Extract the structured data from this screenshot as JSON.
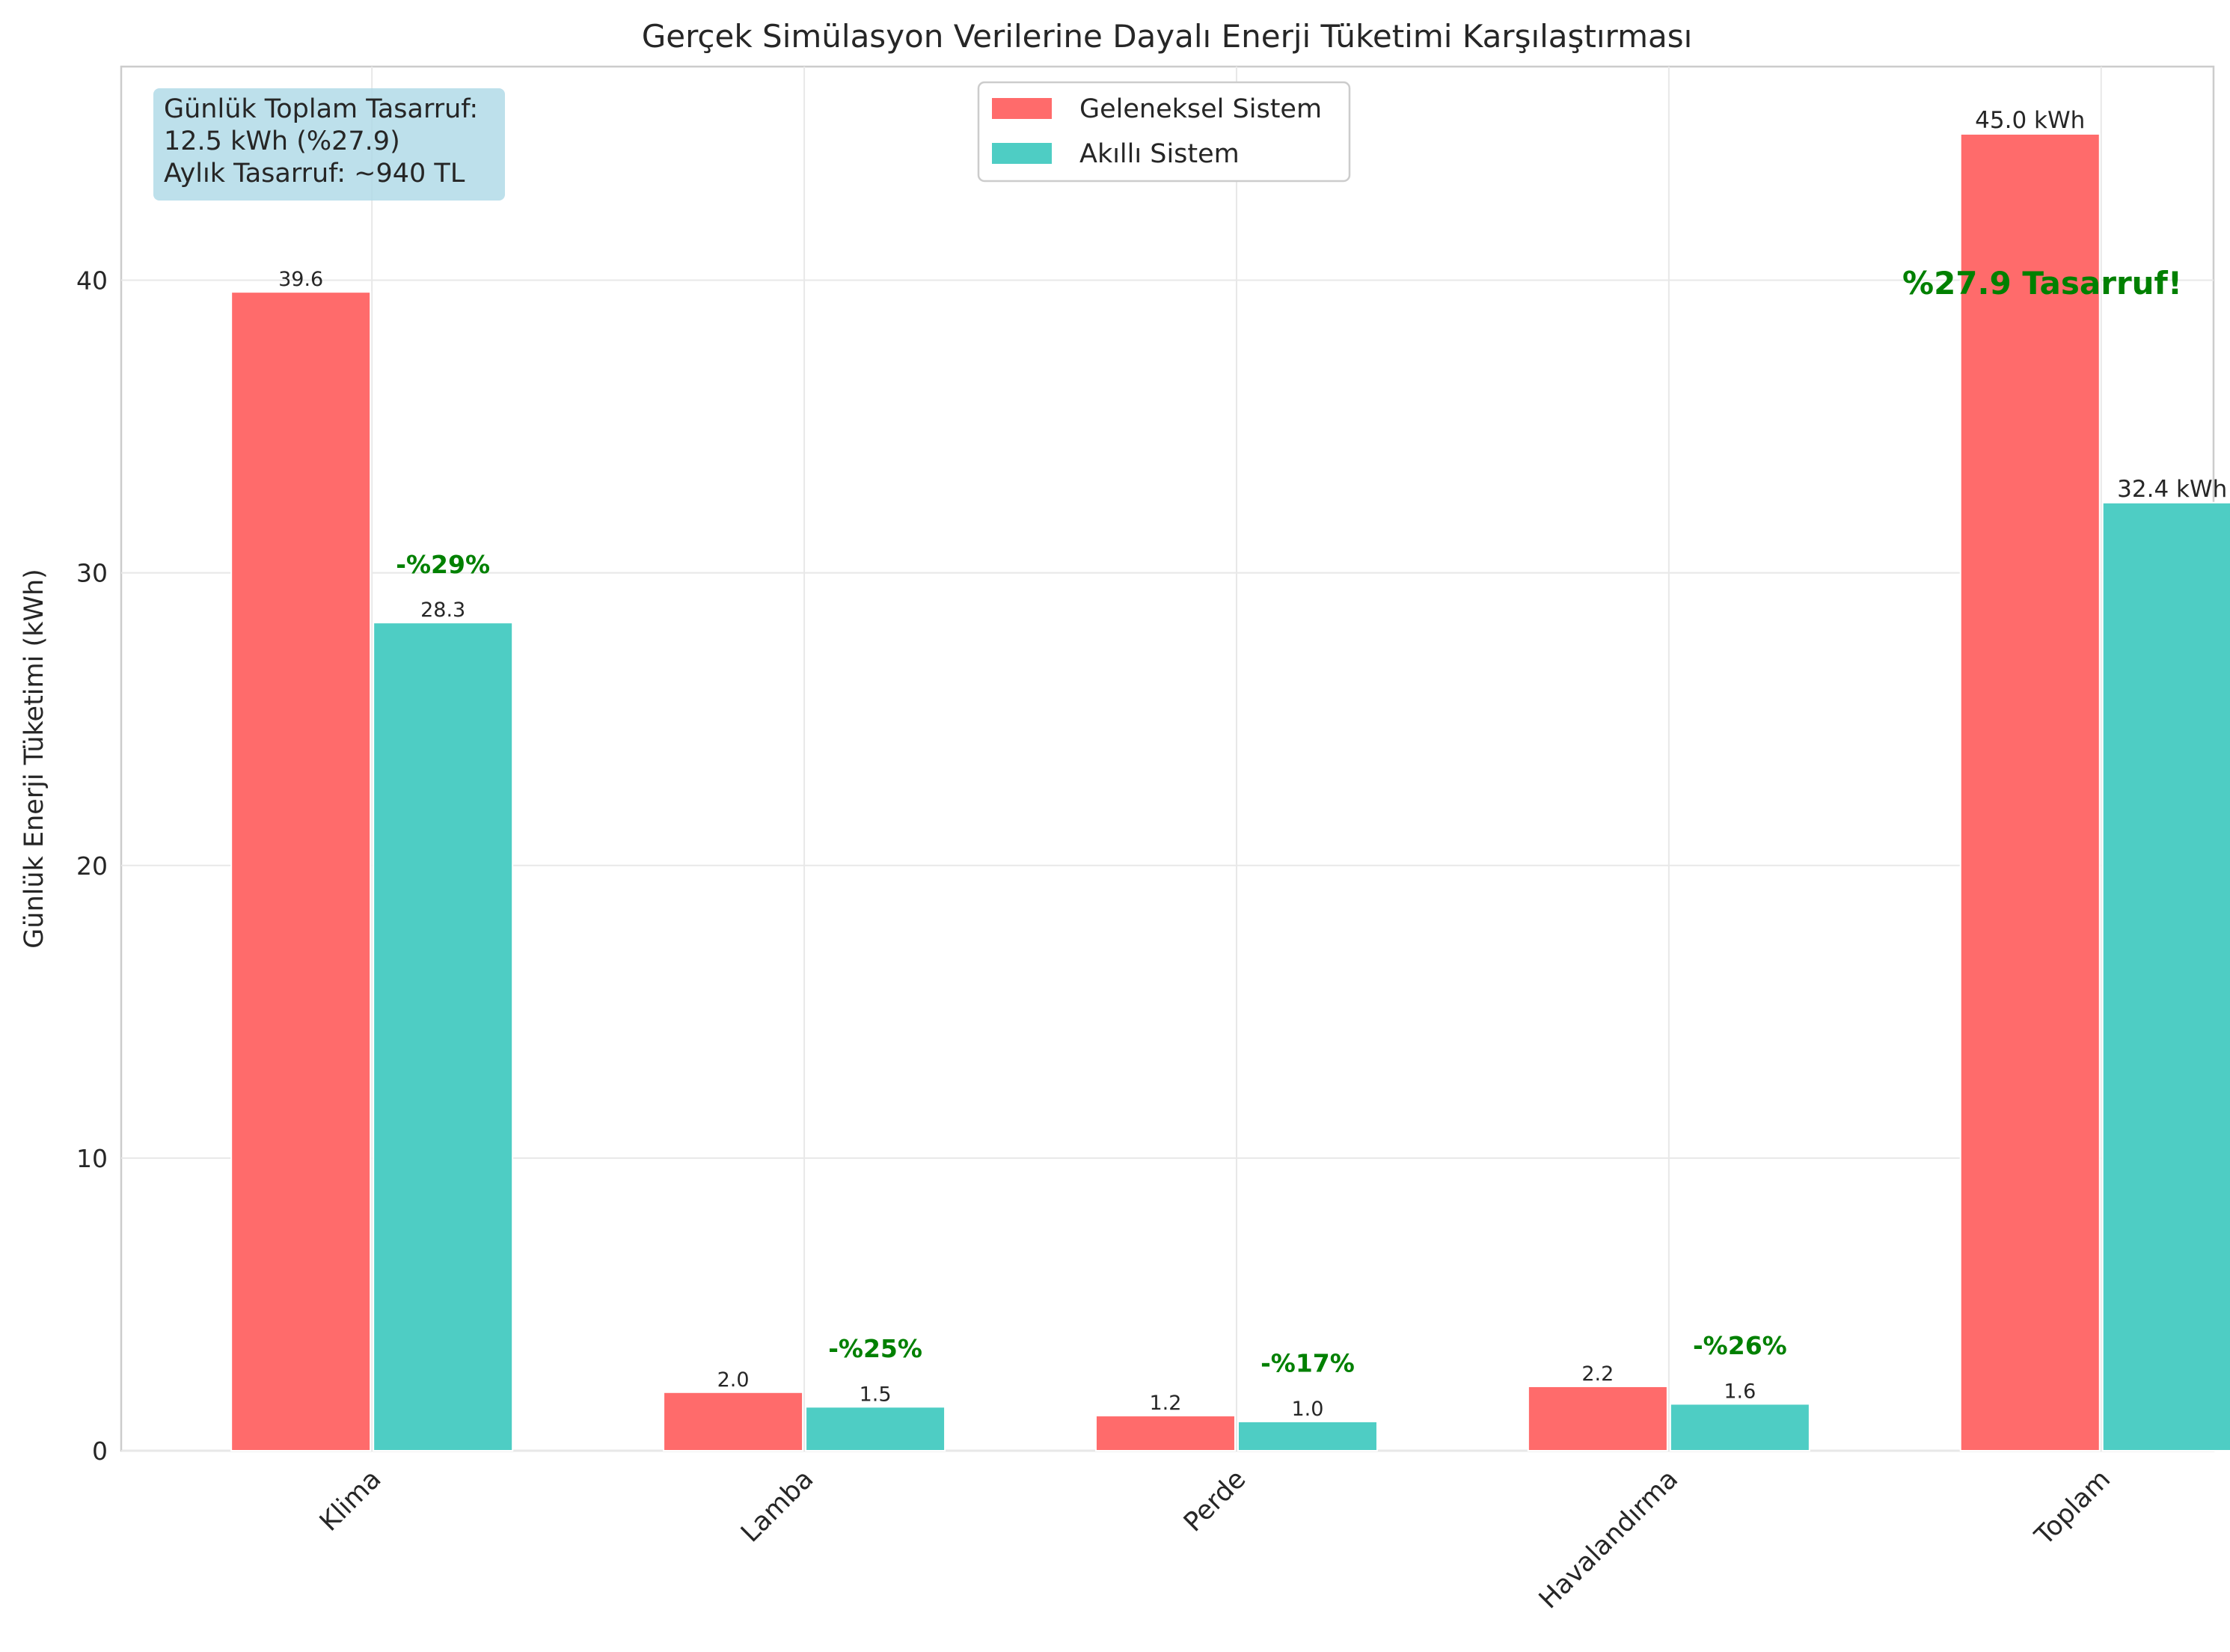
{
  "chart_data": {
    "type": "bar",
    "title": "Gerçek Simülasyon Verilerine Dayalı Enerji Tüketimi Karşılaştırması",
    "xlabel": "",
    "ylabel": "Günlük Enerji Tüketimi (kWh)",
    "ylim": [
      0,
      47.3
    ],
    "yticks": [
      0,
      10,
      20,
      30,
      40
    ],
    "grid": true,
    "legend_position": "top-center",
    "categories": [
      "Klima",
      "Lamba",
      "Perde",
      "Havalandırma",
      "Toplam"
    ],
    "series": [
      {
        "name": "Geleneksel Sistem",
        "color": "#ff6b6b",
        "values": [
          39.6,
          2.0,
          1.2,
          2.2,
          45.0
        ],
        "labels": [
          "39.6",
          "2.0",
          "1.2",
          "2.2",
          "45.0 kWh"
        ]
      },
      {
        "name": "Akıllı Sistem",
        "color": "#4ecdc4",
        "values": [
          28.3,
          1.5,
          1.0,
          1.6,
          32.4
        ],
        "labels": [
          "28.3",
          "1.5",
          "1.0",
          "1.6",
          "32.4 kWh"
        ]
      }
    ],
    "savings_labels": [
      "-%29%",
      "-%25%",
      "-%17%",
      "-%26%"
    ],
    "savings_color": "#008000",
    "total_savings_label": "%27.9 Tasarruf!",
    "info_box": {
      "lines": [
        "Günlük Toplam Tasarruf:",
        "12.5 kWh (%27.9)",
        "Aylık Tasarruf: ~940 TL"
      ],
      "background": "#add8e6"
    }
  }
}
